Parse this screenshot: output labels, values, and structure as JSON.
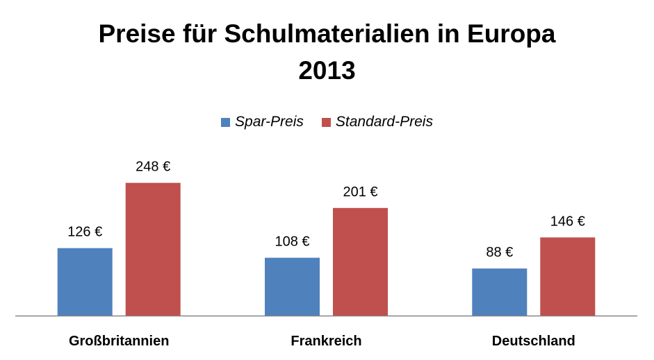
{
  "chart_data": {
    "type": "bar",
    "title_line1": "Preise für Schulmaterialien in Europa",
    "title_line2": "2013",
    "categories": [
      "Großbritannien",
      "Frankreich",
      "Deutschland"
    ],
    "series": [
      {
        "name": "Spar-Preis",
        "color": "#4F81BD",
        "values": [
          126,
          108,
          88
        ],
        "labels": [
          "126 €",
          "108 €",
          "88 €"
        ]
      },
      {
        "name": "Standard-Preis",
        "color": "#C0504D",
        "values": [
          248,
          201,
          146
        ],
        "labels": [
          "248 €",
          "201 €",
          "146 €"
        ]
      }
    ],
    "ylim": [
      0,
      300
    ],
    "grid": false,
    "legend_position": "top-center",
    "xlabel": "",
    "ylabel": ""
  }
}
